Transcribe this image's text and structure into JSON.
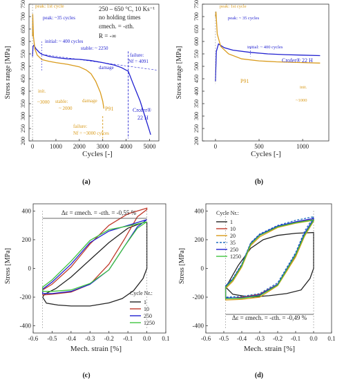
{
  "colors": {
    "blue": "#1f1fd0",
    "orange": "#d99a1a",
    "red": "#c0392b",
    "black": "#222222",
    "green": "#3ec43e",
    "teal": "#1f6fbf"
  },
  "panel_labels": [
    "(a)",
    "(b)",
    "(c)",
    "(d)"
  ],
  "chart_data": [
    {
      "id": "a",
      "type": "line",
      "xlabel": "Cycles [-]",
      "ylabel": "Stress range [MPa]",
      "xlim": [
        -150,
        5400
      ],
      "ylim": [
        200,
        750
      ],
      "xticks": [
        0,
        1000,
        2000,
        3000,
        4000,
        5000
      ],
      "yticks": [
        200,
        250,
        300,
        350,
        400,
        450,
        500,
        550,
        600,
        650,
        700,
        750
      ],
      "header": [
        "250 – 650 °C, 10 Ks⁻¹",
        "no holding times",
        "εmech. = -εth.",
        "R = -∞"
      ],
      "series": [
        {
          "name": "Crofer® 22 H",
          "color": "blue",
          "x": [
            0,
            20,
            60,
            150,
            300,
            400,
            700,
            1000,
            1500,
            2000,
            2500,
            3000,
            3500,
            3800,
            4091,
            4300,
            4600,
            4800,
            5000,
            5050
          ],
          "y": [
            540,
            580,
            585,
            570,
            555,
            548,
            540,
            535,
            530,
            528,
            523,
            515,
            505,
            495,
            480,
            430,
            360,
            300,
            240,
            225
          ]
        },
        {
          "name": "P91",
          "color": "orange",
          "x": [
            0,
            10,
            40,
            100,
            200,
            400,
            700,
            1000,
            1500,
            2000,
            2300,
            2500,
            2700,
            2900,
            3000,
            3050
          ],
          "y": [
            620,
            710,
            620,
            570,
            545,
            527,
            520,
            515,
            508,
            498,
            485,
            470,
            440,
            395,
            360,
            330
          ]
        }
      ],
      "annotations": [
        "peak: 1st cycle",
        "peak: ~35 cycles",
        "initial: ~ 400 cycles",
        "stable: ~ 2250",
        "damage",
        "failure:",
        "Nf = 4091",
        "Crofer®",
        "22 H",
        "init.",
        "~3000",
        "stable:",
        "~ 2000",
        "damage",
        "P91",
        "failure:",
        "Nf = ~3000 cylces"
      ]
    },
    {
      "id": "b",
      "type": "line",
      "xlabel": "Cycles [-]",
      "ylabel": "Stress range [MPa]",
      "xlim": [
        -150,
        1300
      ],
      "ylim": [
        200,
        750
      ],
      "xticks": [
        0,
        500,
        1000
      ],
      "yticks": [
        200,
        250,
        300,
        350,
        400,
        450,
        500,
        550,
        600,
        650,
        700,
        750
      ],
      "series": [
        {
          "name": "Crofer® 22 H",
          "color": "blue",
          "x": [
            0,
            10,
            35,
            100,
            200,
            400,
            600,
            800,
            1000,
            1200
          ],
          "y": [
            440,
            560,
            590,
            575,
            565,
            556,
            550,
            547,
            545,
            543
          ]
        },
        {
          "name": "P91",
          "color": "orange",
          "x": [
            0,
            5,
            20,
            60,
            150,
            300,
            500,
            700,
            1000,
            1200
          ],
          "y": [
            700,
            720,
            630,
            580,
            550,
            530,
            522,
            518,
            515,
            513
          ]
        }
      ],
      "annotations": [
        "peak: 1st cycle",
        "peak: ~ 35 cycles",
        "initial: ~ 400 cycles",
        "Crofer® 22 H",
        "P91",
        "init.",
        "~1000"
      ]
    },
    {
      "id": "c",
      "type": "line",
      "xlabel": "Mech. strain [%]",
      "ylabel": "Stress [MPa]",
      "xlim": [
        -0.6,
        0.1
      ],
      "ylim": [
        -450,
        450
      ],
      "xticks": [
        -0.6,
        -0.5,
        -0.4,
        -0.3,
        -0.2,
        -0.1,
        0.0,
        0.1
      ],
      "xticklabels": [
        "-0.6",
        "-0.5",
        "-0.4",
        "-0.3",
        "-0.2",
        "-0.1",
        "0.0",
        "0.1"
      ],
      "yticks": [
        -400,
        -200,
        0,
        200,
        400
      ],
      "header": "Δε = εmech. = -εth. = -0,55 %",
      "legend_title": "Cycle Nr.:",
      "legend_position": "bottom-right",
      "series": [
        {
          "name": "1",
          "color": "black",
          "loop": [
            [
              0.0,
              0
            ],
            [
              0.0,
              0
            ],
            [
              -0.02,
              -70
            ],
            [
              -0.07,
              -155
            ],
            [
              -0.13,
              -210
            ],
            [
              -0.2,
              -240
            ],
            [
              -0.3,
              -262
            ],
            [
              -0.4,
              -262
            ],
            [
              -0.47,
              -255
            ],
            [
              -0.53,
              -242
            ],
            [
              -0.55,
              -200
            ],
            [
              -0.54,
              -180
            ],
            [
              -0.48,
              -140
            ],
            [
              -0.4,
              -60
            ],
            [
              -0.3,
              60
            ],
            [
              -0.2,
              180
            ],
            [
              -0.1,
              280
            ],
            [
              -0.02,
              320
            ],
            [
              0.0,
              320
            ]
          ]
        },
        {
          "name": "10",
          "color": "red",
          "loop": [
            [
              0.0,
              410
            ],
            [
              -0.05,
              360
            ],
            [
              -0.12,
              200
            ],
            [
              -0.2,
              30
            ],
            [
              -0.3,
              -110
            ],
            [
              -0.4,
              -165
            ],
            [
              -0.5,
              -180
            ],
            [
              -0.55,
              -185
            ],
            [
              -0.55,
              -150
            ],
            [
              -0.5,
              -110
            ],
            [
              -0.4,
              10
            ],
            [
              -0.3,
              170
            ],
            [
              -0.2,
              300
            ],
            [
              -0.1,
              380
            ],
            [
              0.0,
              420
            ]
          ]
        },
        {
          "name": "250",
          "color": "blue",
          "loop": [
            [
              0.0,
              340
            ],
            [
              -0.05,
              290
            ],
            [
              -0.12,
              150
            ],
            [
              -0.2,
              -10
            ],
            [
              -0.3,
              -110
            ],
            [
              -0.4,
              -160
            ],
            [
              -0.5,
              -175
            ],
            [
              -0.55,
              -175
            ],
            [
              -0.55,
              -145
            ],
            [
              -0.5,
              -95
            ],
            [
              -0.4,
              30
            ],
            [
              -0.3,
              180
            ],
            [
              -0.2,
              260
            ],
            [
              -0.1,
              300
            ],
            [
              0.0,
              340
            ]
          ]
        },
        {
          "name": "1250",
          "color": "green",
          "loop": [
            [
              0.0,
              325
            ],
            [
              -0.05,
              280
            ],
            [
              -0.12,
              150
            ],
            [
              -0.2,
              -10
            ],
            [
              -0.3,
              -105
            ],
            [
              -0.4,
              -150
            ],
            [
              -0.5,
              -160
            ],
            [
              -0.55,
              -160
            ],
            [
              -0.55,
              -130
            ],
            [
              -0.5,
              -80
            ],
            [
              -0.4,
              50
            ],
            [
              -0.3,
              195
            ],
            [
              -0.2,
              270
            ],
            [
              -0.1,
              295
            ],
            [
              0.0,
              325
            ]
          ]
        }
      ]
    },
    {
      "id": "d",
      "type": "line",
      "xlabel": "Mech. strain [%]",
      "ylabel": "Stress [MPa]",
      "xlim": [
        -0.6,
        0.1
      ],
      "ylim": [
        -450,
        450
      ],
      "xticks": [
        -0.6,
        -0.5,
        -0.4,
        -0.3,
        -0.2,
        -0.1,
        0.0,
        0.1
      ],
      "xticklabels": [
        "-0.6",
        "-0.5",
        "-0.4",
        "-0.3",
        "-0.2",
        "-0.1",
        "0.0",
        "0.1"
      ],
      "yticks": [
        -400,
        -200,
        0,
        200,
        400
      ],
      "header": "Δε = εmech. = -εth. = -0,49 %",
      "legend_title": "Cycle Nr.:",
      "legend_position": "top-left",
      "series": [
        {
          "name": "1",
          "color": "black",
          "loop": [
            [
              0.0,
              0
            ],
            [
              -0.02,
              -70
            ],
            [
              -0.07,
              -150
            ],
            [
              -0.15,
              -175
            ],
            [
              -0.25,
              -190
            ],
            [
              -0.35,
              -200
            ],
            [
              -0.45,
              -180
            ],
            [
              -0.49,
              -130
            ],
            [
              -0.47,
              -90
            ],
            [
              -0.42,
              20
            ],
            [
              -0.35,
              140
            ],
            [
              -0.28,
              200
            ],
            [
              -0.2,
              230
            ],
            [
              -0.1,
              245
            ],
            [
              0.0,
              250
            ]
          ]
        },
        {
          "name": "10",
          "color": "red",
          "loop": [
            [
              0.0,
              330
            ],
            [
              -0.05,
              230
            ],
            [
              -0.1,
              90
            ],
            [
              -0.2,
              -110
            ],
            [
              -0.3,
              -180
            ],
            [
              -0.4,
              -200
            ],
            [
              -0.49,
              -210
            ],
            [
              -0.49,
              -130
            ],
            [
              -0.45,
              -80
            ],
            [
              -0.4,
              20
            ],
            [
              -0.35,
              170
            ],
            [
              -0.3,
              230
            ],
            [
              -0.2,
              290
            ],
            [
              -0.1,
              320
            ],
            [
              0.0,
              340
            ]
          ]
        },
        {
          "name": "20",
          "color": "orange",
          "loop": [
            [
              0.0,
              330
            ],
            [
              -0.05,
              225
            ],
            [
              -0.1,
              80
            ],
            [
              -0.2,
              -120
            ],
            [
              -0.3,
              -200
            ],
            [
              -0.4,
              -215
            ],
            [
              -0.49,
              -220
            ],
            [
              -0.49,
              -140
            ],
            [
              -0.45,
              -90
            ],
            [
              -0.4,
              10
            ],
            [
              -0.35,
              160
            ],
            [
              -0.3,
              220
            ],
            [
              -0.2,
              285
            ],
            [
              -0.1,
              315
            ],
            [
              0.0,
              335
            ]
          ]
        },
        {
          "name": "35",
          "color": "teal",
          "loop": [
            [
              0.0,
              360
            ],
            [
              -0.05,
              260
            ],
            [
              -0.1,
              110
            ],
            [
              -0.2,
              -100
            ],
            [
              -0.3,
              -175
            ],
            [
              -0.4,
              -195
            ],
            [
              -0.49,
              -200
            ],
            [
              -0.49,
              -120
            ],
            [
              -0.45,
              -70
            ],
            [
              -0.4,
              30
            ],
            [
              -0.35,
              180
            ],
            [
              -0.3,
              240
            ],
            [
              -0.2,
              300
            ],
            [
              -0.1,
              335
            ],
            [
              0.0,
              360
            ]
          ]
        },
        {
          "name": "250",
          "color": "blue",
          "loop": [
            [
              0.0,
              345
            ],
            [
              -0.05,
              245
            ],
            [
              -0.1,
              100
            ],
            [
              -0.2,
              -110
            ],
            [
              -0.3,
              -185
            ],
            [
              -0.4,
              -205
            ],
            [
              -0.49,
              -205
            ],
            [
              -0.49,
              -125
            ],
            [
              -0.45,
              -75
            ],
            [
              -0.4,
              25
            ],
            [
              -0.35,
              175
            ],
            [
              -0.3,
              235
            ],
            [
              -0.2,
              295
            ],
            [
              -0.1,
              325
            ],
            [
              0.0,
              348
            ]
          ]
        },
        {
          "name": "1250",
          "color": "green",
          "loop": [
            [
              0.0,
              335
            ],
            [
              -0.05,
              235
            ],
            [
              -0.1,
              95
            ],
            [
              -0.2,
              -115
            ],
            [
              -0.3,
              -190
            ],
            [
              -0.4,
              -208
            ],
            [
              -0.49,
              -210
            ],
            [
              -0.49,
              -130
            ],
            [
              -0.45,
              -80
            ],
            [
              -0.4,
              20
            ],
            [
              -0.35,
              170
            ],
            [
              -0.3,
              230
            ],
            [
              -0.2,
              290
            ],
            [
              -0.1,
              318
            ],
            [
              0.0,
              338
            ]
          ]
        }
      ]
    }
  ]
}
